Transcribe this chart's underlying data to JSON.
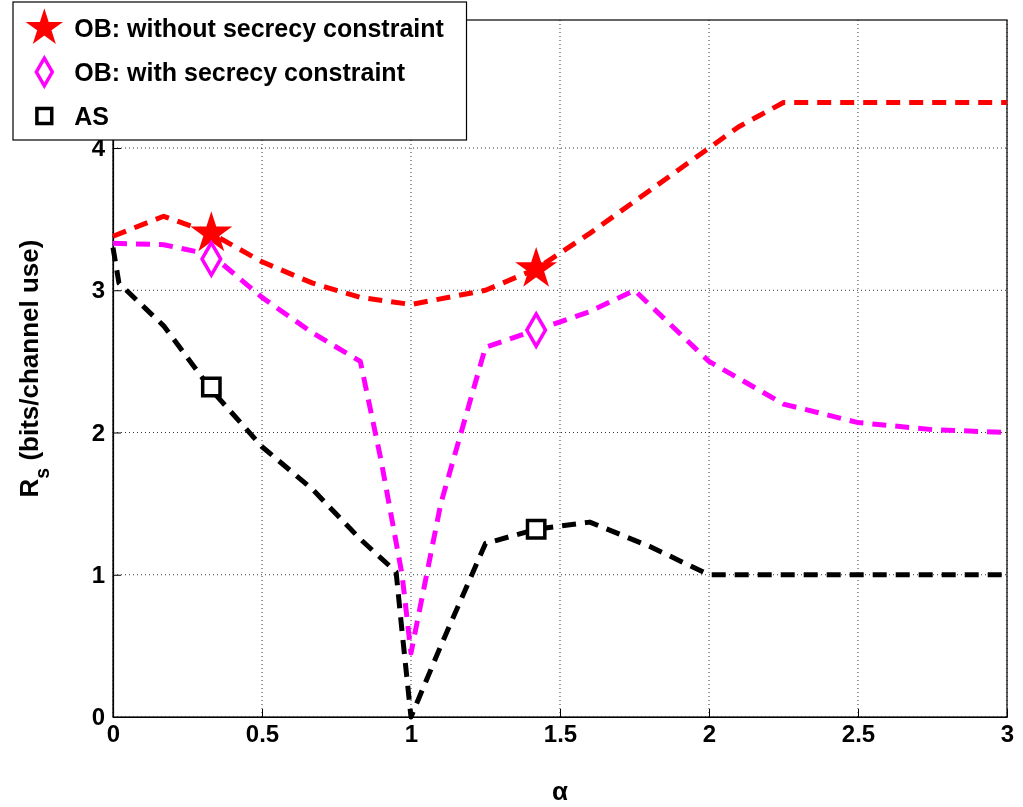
{
  "chart_data": {
    "type": "line",
    "xlabel": "α",
    "ylabel": "R$_{s}$ (bits/channel use)",
    "xlim": [
      0,
      3
    ],
    "ylim": [
      0,
      4.9
    ],
    "xticks": [
      0,
      0.5,
      1,
      1.5,
      2,
      2.5,
      3
    ],
    "yticks": [
      0,
      1,
      2,
      3,
      4
    ],
    "grid": true,
    "legend": "top left",
    "line_style": "dashed",
    "series": [
      {
        "color": "#ff0000",
        "x": [
          0,
          0.17,
          0.33,
          0.5,
          0.67,
          0.83,
          1,
          1.25,
          1.42,
          1.6,
          1.8,
          2,
          2.1,
          2.25,
          2.5,
          3
        ],
        "values": [
          3.38,
          3.52,
          3.4,
          3.2,
          3.05,
          2.95,
          2.9,
          3.0,
          3.15,
          3.4,
          3.7,
          4.0,
          4.15,
          4.32,
          4.32,
          4.32
        ]
      },
      {
        "color": "#ff00ff",
        "x": [
          0,
          0.17,
          0.33,
          0.5,
          0.67,
          0.83,
          0.9,
          0.97,
          1,
          1.1,
          1.25,
          1.42,
          1.6,
          1.75,
          2,
          2.25,
          2.5,
          2.75,
          3
        ],
        "values": [
          3.33,
          3.32,
          3.25,
          2.95,
          2.7,
          2.5,
          1.8,
          1.0,
          0.45,
          1.5,
          2.6,
          2.72,
          2.85,
          3.0,
          2.5,
          2.2,
          2.07,
          2.02,
          2.0
        ]
      },
      {
        "color": "#000000",
        "x": [
          0,
          0.02,
          0.17,
          0.33,
          0.5,
          0.67,
          0.83,
          0.95,
          0.97,
          1,
          1.1,
          1.25,
          1.42,
          1.6,
          1.8,
          2,
          3
        ],
        "values": [
          3.3,
          3.05,
          2.75,
          2.3,
          1.9,
          1.6,
          1.25,
          1.02,
          0.6,
          0,
          0.5,
          1.22,
          1.32,
          1.37,
          1.2,
          1.0,
          1.0
        ]
      },
      {
        "type": "scatter",
        "name": "OB: without secrecy constraint",
        "color": "#ff0000",
        "marker": "star",
        "x": [
          0.33,
          1.42
        ],
        "values": [
          3.4,
          3.15
        ]
      },
      {
        "type": "scatter",
        "name": "OB: with secrecy constraint",
        "color": "#ff00ff",
        "marker": "diamond",
        "x": [
          0.33,
          1.42
        ],
        "values": [
          3.22,
          2.72
        ]
      },
      {
        "type": "scatter",
        "name": "AS",
        "color": "#000000",
        "marker": "square",
        "x": [
          0.33,
          1.42
        ],
        "values": [
          2.32,
          1.32
        ]
      }
    ]
  }
}
